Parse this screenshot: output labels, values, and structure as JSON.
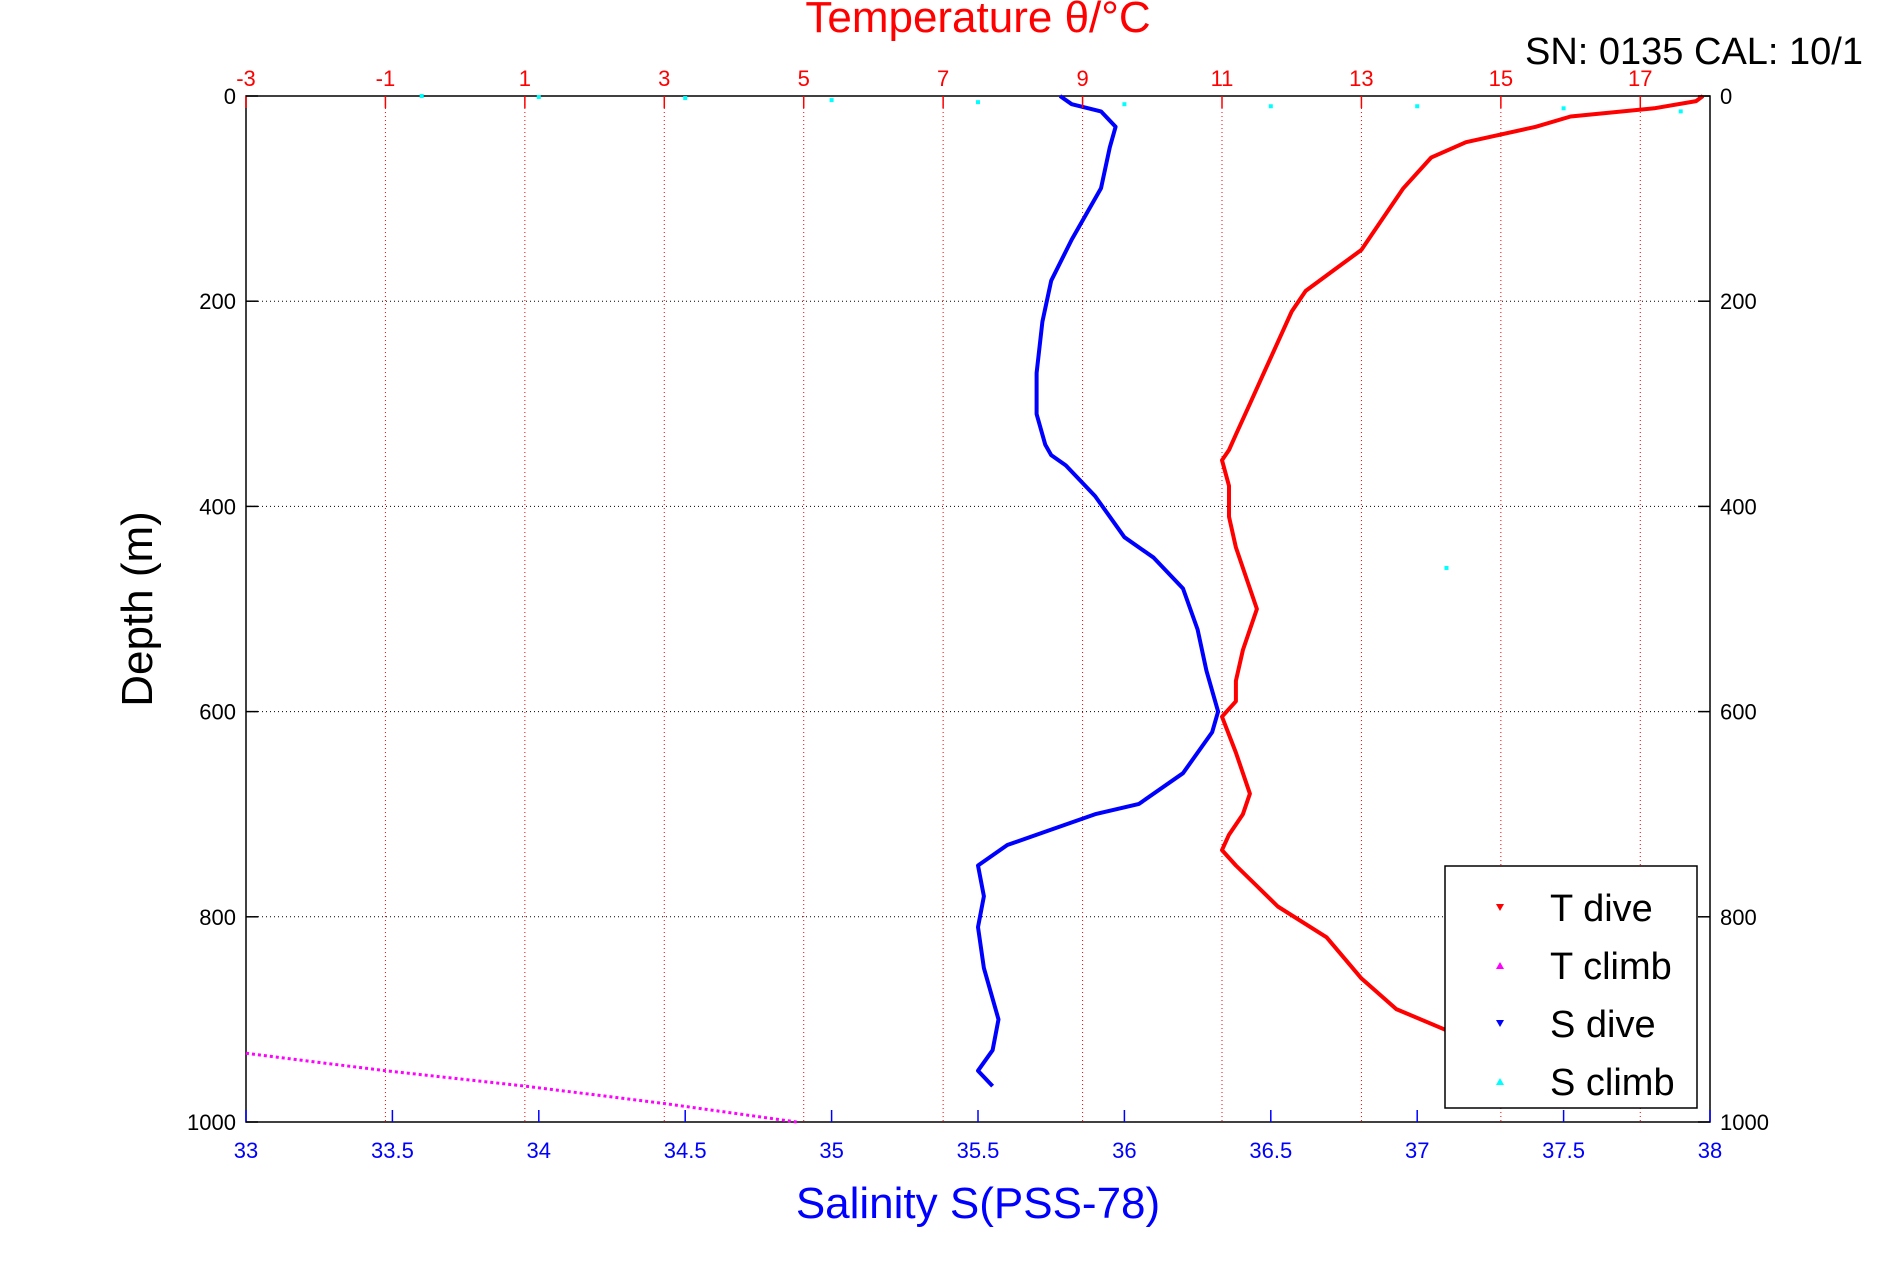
{
  "serial_label": "SN: 0135  CAL: 10/1",
  "chart_data": {
    "type": "scatter",
    "title": "Temperature θ/°C",
    "xlabel": "Salinity S(PSS-78)",
    "ylabel": "Depth (m)",
    "grid": true,
    "legend_position": "bottom-right",
    "colors": {
      "temperature": "#ff0000",
      "salinity": "#0000ff",
      "t_climb": "#ff00ff",
      "s_climb": "#00ffff",
      "grid": "#000000",
      "frame": "#000000"
    },
    "axes": {
      "salinity_x": {
        "range": [
          33,
          38
        ],
        "ticks": [
          33,
          33.5,
          34,
          34.5,
          35,
          35.5,
          36,
          36.5,
          37,
          37.5,
          38
        ],
        "tick_labels": [
          "33",
          "33.5",
          "34",
          "34.5",
          "35",
          "35.5",
          "36",
          "36.5",
          "37",
          "37.5",
          "38"
        ]
      },
      "temperature_x": {
        "range": [
          -3,
          18
        ],
        "ticks": [
          -3,
          -1,
          1,
          3,
          5,
          7,
          9,
          11,
          13,
          15,
          17
        ],
        "tick_labels": [
          "-3",
          "-1",
          "1",
          "3",
          "5",
          "7",
          "9",
          "11",
          "13",
          "15",
          "17"
        ]
      },
      "depth_y": {
        "range": [
          0,
          1000
        ],
        "reversed": true,
        "ticks": [
          0,
          200,
          400,
          600,
          800,
          1000
        ],
        "tick_labels": [
          "0",
          "200",
          "400",
          "600",
          "800",
          "1000"
        ]
      }
    },
    "legend": [
      {
        "label": "T dive",
        "color": "#ff0000",
        "marker": "triangle-down"
      },
      {
        "label": "T climb",
        "color": "#ff00ff",
        "marker": "triangle-up"
      },
      {
        "label": "S dive",
        "color": "#0000ff",
        "marker": "triangle-down"
      },
      {
        "label": "S climb",
        "color": "#00ffff",
        "marker": "triangle-up"
      }
    ],
    "series": [
      {
        "name": "T dive",
        "axis": "temperature",
        "x_unit": "°C",
        "points": [
          [
            17.9,
            0
          ],
          [
            17.8,
            5
          ],
          [
            17.2,
            12
          ],
          [
            16.0,
            20
          ],
          [
            15.5,
            30
          ],
          [
            14.5,
            45
          ],
          [
            14.0,
            60
          ],
          [
            13.6,
            90
          ],
          [
            13.3,
            120
          ],
          [
            13.0,
            150
          ],
          [
            12.6,
            170
          ],
          [
            12.2,
            190
          ],
          [
            12.0,
            210
          ],
          [
            11.8,
            240
          ],
          [
            11.6,
            270
          ],
          [
            11.4,
            300
          ],
          [
            11.2,
            330
          ],
          [
            11.1,
            345
          ],
          [
            11.0,
            355
          ],
          [
            11.1,
            380
          ],
          [
            11.1,
            410
          ],
          [
            11.2,
            440
          ],
          [
            11.4,
            480
          ],
          [
            11.5,
            500
          ],
          [
            11.3,
            540
          ],
          [
            11.2,
            570
          ],
          [
            11.2,
            590
          ],
          [
            11.0,
            605
          ],
          [
            11.2,
            640
          ],
          [
            11.4,
            680
          ],
          [
            11.3,
            700
          ],
          [
            11.1,
            720
          ],
          [
            11.0,
            735
          ],
          [
            11.2,
            750
          ],
          [
            11.5,
            770
          ],
          [
            11.8,
            790
          ],
          [
            12.5,
            820
          ],
          [
            13.0,
            860
          ],
          [
            13.5,
            890
          ],
          [
            14.2,
            910
          ],
          [
            15.0,
            940
          ],
          [
            15.2,
            955
          ]
        ]
      },
      {
        "name": "T climb",
        "axis": "temperature",
        "x_unit": "°C",
        "points": [
          [
            -3.0,
            933
          ],
          [
            -1.0,
            950
          ],
          [
            1.0,
            965
          ],
          [
            3.0,
            982
          ],
          [
            4.9,
            1000
          ]
        ]
      },
      {
        "name": "S dive",
        "axis": "salinity",
        "x_unit": "PSS-78",
        "points": [
          [
            35.78,
            0
          ],
          [
            35.82,
            8
          ],
          [
            35.92,
            15
          ],
          [
            35.97,
            30
          ],
          [
            35.95,
            50
          ],
          [
            35.92,
            90
          ],
          [
            35.82,
            140
          ],
          [
            35.75,
            180
          ],
          [
            35.72,
            220
          ],
          [
            35.7,
            270
          ],
          [
            35.7,
            310
          ],
          [
            35.73,
            340
          ],
          [
            35.75,
            350
          ],
          [
            35.8,
            360
          ],
          [
            35.9,
            390
          ],
          [
            35.95,
            410
          ],
          [
            36.0,
            430
          ],
          [
            36.1,
            450
          ],
          [
            36.2,
            480
          ],
          [
            36.25,
            520
          ],
          [
            36.28,
            560
          ],
          [
            36.32,
            600
          ],
          [
            36.3,
            620
          ],
          [
            36.2,
            660
          ],
          [
            36.05,
            690
          ],
          [
            35.9,
            700
          ],
          [
            35.75,
            715
          ],
          [
            35.6,
            730
          ],
          [
            35.5,
            750
          ],
          [
            35.52,
            780
          ],
          [
            35.5,
            810
          ],
          [
            35.52,
            850
          ],
          [
            35.57,
            900
          ],
          [
            35.55,
            930
          ],
          [
            35.5,
            950
          ],
          [
            35.55,
            965
          ]
        ]
      },
      {
        "name": "S climb",
        "axis": "salinity",
        "x_unit": "PSS-78",
        "points": [
          [
            37.1,
            460
          ],
          [
            33.6,
            0
          ],
          [
            34.0,
            1
          ],
          [
            34.5,
            2
          ],
          [
            35.0,
            4
          ],
          [
            35.5,
            6
          ],
          [
            36.0,
            8
          ],
          [
            36.5,
            10
          ],
          [
            37.0,
            10
          ],
          [
            37.5,
            12
          ],
          [
            37.9,
            15
          ]
        ]
      }
    ]
  }
}
